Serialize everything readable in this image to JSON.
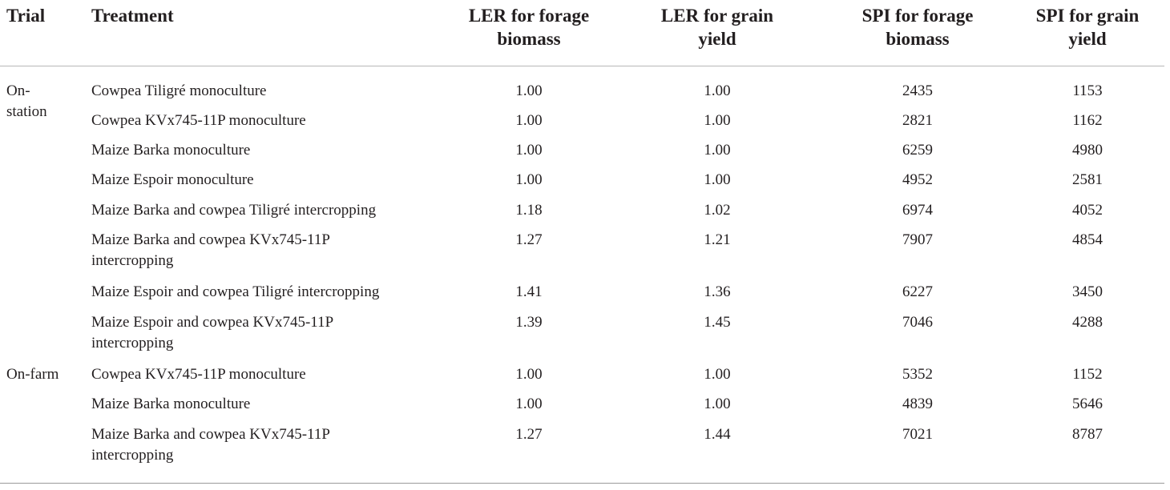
{
  "headers": {
    "trial": "Trial",
    "treatment": "Treatment",
    "ler_forage": "LER for forage biomass",
    "ler_grain": "LER for grain yield",
    "spi_forage": "SPI for forage biomass",
    "spi_grain": "SPI for grain yield"
  },
  "header_lines": {
    "ler_forage": [
      "LER for forage",
      "biomass"
    ],
    "ler_grain": [
      "LER for grain",
      "yield"
    ],
    "spi_forage": [
      "SPI for forage",
      "biomass"
    ],
    "spi_grain": [
      "SPI for grain",
      "yield"
    ]
  },
  "rows": [
    {
      "trial": "On-station",
      "treatment": "Cowpea Tiligré monoculture",
      "ler_forage": "1.00",
      "ler_grain": "1.00",
      "spi_forage": "2435",
      "spi_grain": "1153"
    },
    {
      "trial": "",
      "treatment": "Cowpea KVx745-11P monoculture",
      "ler_forage": "1.00",
      "ler_grain": "1.00",
      "spi_forage": "2821",
      "spi_grain": "1162"
    },
    {
      "trial": "",
      "treatment": "Maize Barka monoculture",
      "ler_forage": "1.00",
      "ler_grain": "1.00",
      "spi_forage": "6259",
      "spi_grain": "4980"
    },
    {
      "trial": "",
      "treatment": "Maize Espoir monoculture",
      "ler_forage": "1.00",
      "ler_grain": "1.00",
      "spi_forage": "4952",
      "spi_grain": "2581"
    },
    {
      "trial": "",
      "treatment": "Maize Barka and cowpea Tiligré intercropping",
      "ler_forage": "1.18",
      "ler_grain": "1.02",
      "spi_forage": "6974",
      "spi_grain": "4052"
    },
    {
      "trial": "",
      "treatment": "Maize Barka and cowpea KVx745-11P intercropping",
      "ler_forage": "1.27",
      "ler_grain": "1.21",
      "spi_forage": "7907",
      "spi_grain": "4854"
    },
    {
      "trial": "",
      "treatment": "Maize Espoir and cowpea Tiligré intercropping",
      "ler_forage": "1.41",
      "ler_grain": "1.36",
      "spi_forage": "6227",
      "spi_grain": "3450"
    },
    {
      "trial": "",
      "treatment": "Maize Espoir and cowpea KVx745-11P intercropping",
      "ler_forage": "1.39",
      "ler_grain": "1.45",
      "spi_forage": "7046",
      "spi_grain": "4288"
    },
    {
      "trial": "On-farm",
      "treatment": "Cowpea KVx745-11P monoculture",
      "ler_forage": "1.00",
      "ler_grain": "1.00",
      "spi_forage": "5352",
      "spi_grain": "1152"
    },
    {
      "trial": "",
      "treatment": "Maize Barka monoculture",
      "ler_forage": "1.00",
      "ler_grain": "1.00",
      "spi_forage": "4839",
      "spi_grain": "5646"
    },
    {
      "trial": "",
      "treatment": "Maize Barka and cowpea KVx745-11P intercropping",
      "ler_forage": "1.27",
      "ler_grain": "1.44",
      "spi_forage": "7021",
      "spi_grain": "8787"
    }
  ],
  "trial_lines": {
    "on_station": [
      "On-",
      "station"
    ]
  },
  "treatment_lines": {
    "row5": [
      "Maize Barka and cowpea KVx745-11P",
      "intercropping"
    ],
    "row7": [
      "Maize Espoir and cowpea KVx745-11P",
      "intercropping"
    ],
    "row10": [
      "Maize Barka and cowpea KVx745-11P",
      "intercropping"
    ]
  }
}
